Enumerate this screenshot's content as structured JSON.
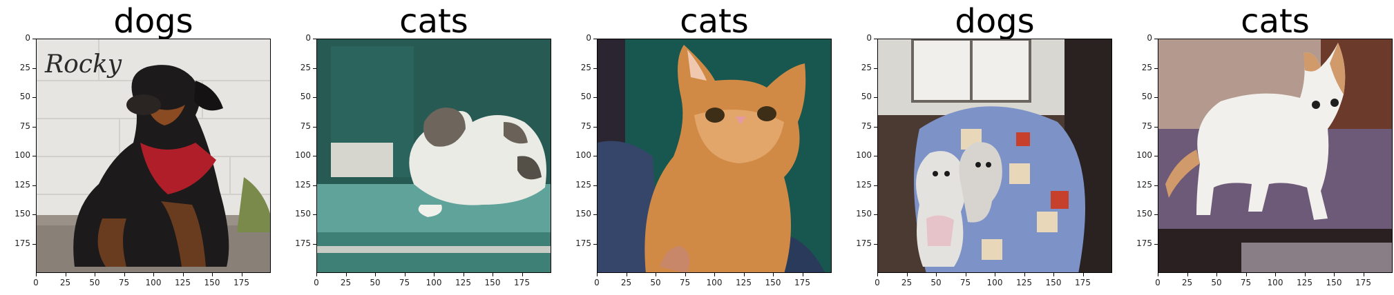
{
  "figure": {
    "panels": [
      {
        "title": "dogs",
        "watermark": "Rocky",
        "scene": "dog-rocky"
      },
      {
        "title": "cats",
        "scene": "cat-shelf"
      },
      {
        "title": "cats",
        "scene": "cat-orange"
      },
      {
        "title": "dogs",
        "scene": "dogs-poodles"
      },
      {
        "title": "cats",
        "scene": "cat-table"
      }
    ],
    "y_ticks": [
      "0",
      "25",
      "50",
      "75",
      "100",
      "125",
      "150",
      "175"
    ],
    "x_ticks": [
      "0",
      "25",
      "50",
      "75",
      "100",
      "125",
      "150",
      "175"
    ]
  }
}
